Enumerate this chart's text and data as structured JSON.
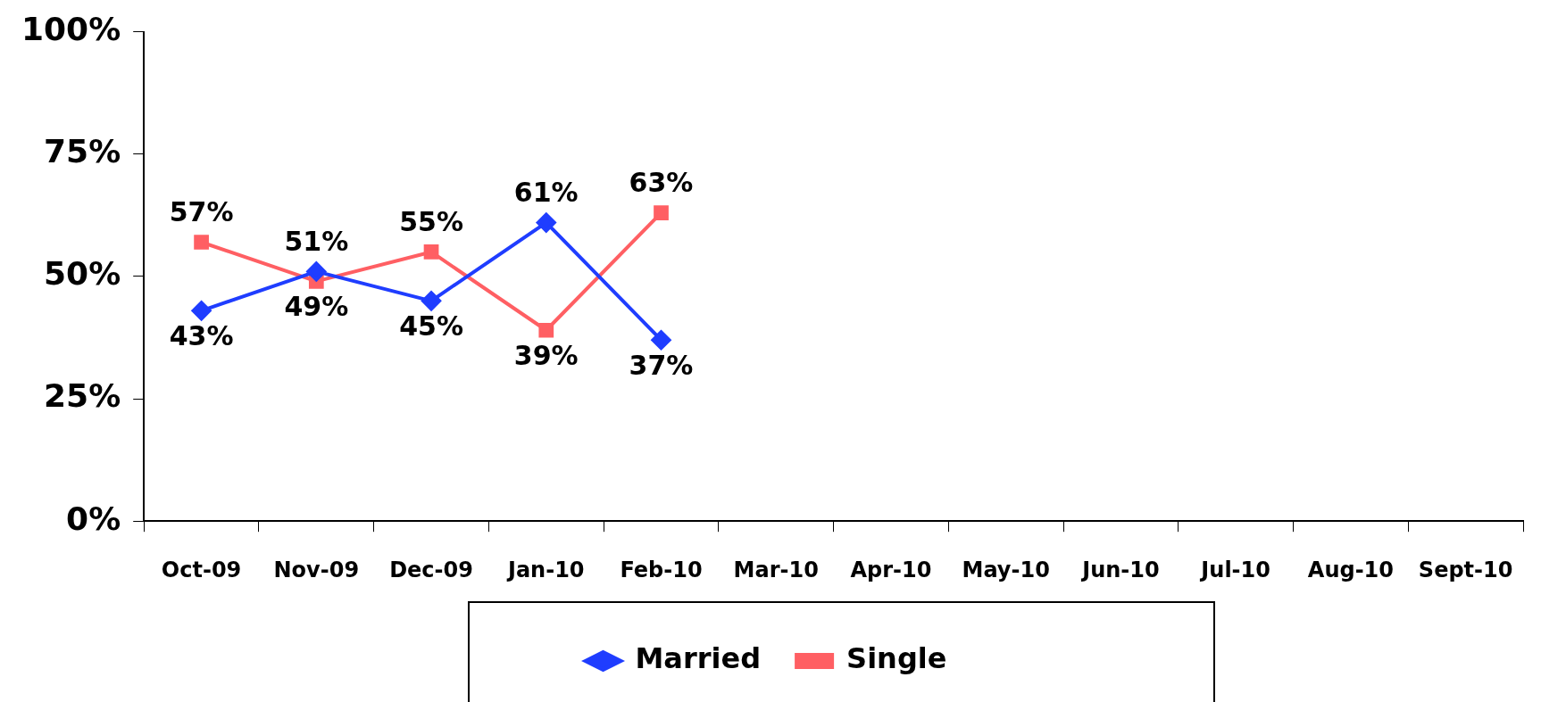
{
  "chart_data": {
    "type": "line",
    "categories": [
      "Oct-09",
      "Nov-09",
      "Dec-09",
      "Jan-10",
      "Feb-10",
      "Mar-10",
      "Apr-10",
      "May-10",
      "Jun-10",
      "Jul-10",
      "Aug-10",
      "Sept-10"
    ],
    "series": [
      {
        "name": "Married",
        "color": "#1f3dff",
        "marker": "diamond",
        "values": [
          43,
          51,
          45,
          61,
          37,
          null,
          null,
          null,
          null,
          null,
          null,
          null
        ],
        "value_labels": [
          "43%",
          "51%",
          "45%",
          "61%",
          "37%",
          null,
          null,
          null,
          null,
          null,
          null,
          null
        ]
      },
      {
        "name": "Single",
        "color": "#ff5f63",
        "marker": "square",
        "values": [
          57,
          49,
          55,
          39,
          63,
          null,
          null,
          null,
          null,
          null,
          null,
          null
        ],
        "value_labels": [
          "57%",
          "49%",
          "55%",
          "39%",
          "63%",
          null,
          null,
          null,
          null,
          null,
          null,
          null
        ]
      }
    ],
    "ylim": [
      0,
      100
    ],
    "yticks": [
      {
        "value": 0,
        "label": "0%"
      },
      {
        "value": 25,
        "label": "25%"
      },
      {
        "value": 50,
        "label": "50%"
      },
      {
        "value": 75,
        "label": "75%"
      },
      {
        "value": 100,
        "label": "100%"
      }
    ],
    "grid": false,
    "legend": "bottom",
    "line_style": "solid"
  }
}
